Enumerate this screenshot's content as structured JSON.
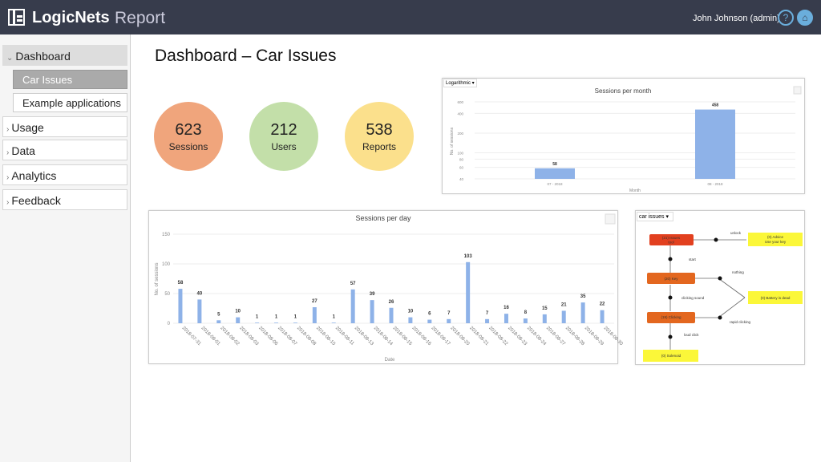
{
  "header": {
    "brand": "LogicNets",
    "product": "Report",
    "user": "John Johnson (admin)",
    "help_icon": "?",
    "home_icon": "⌂"
  },
  "sidebar": {
    "items": [
      {
        "label": "Dashboard",
        "expanded": true,
        "children": [
          {
            "label": "Car Issues",
            "active": true
          },
          {
            "label": "Example applications"
          }
        ]
      },
      {
        "label": "Usage"
      },
      {
        "label": "Data"
      },
      {
        "label": "Analytics"
      },
      {
        "label": "Feedback"
      }
    ]
  },
  "page": {
    "title": "Dashboard – Car Issues"
  },
  "kpis": [
    {
      "value": "623",
      "label": "Sessions",
      "color": "#f0a57c"
    },
    {
      "value": "212",
      "label": "Users",
      "color": "#c3dfa9"
    },
    {
      "value": "538",
      "label": "Reports",
      "color": "#fbe08c"
    }
  ],
  "colors": {
    "bar": "#8eb2e8",
    "issues": "#e2401f",
    "node": "#e3671f",
    "leaf": "#fbf739"
  },
  "chart_data": [
    {
      "type": "bar",
      "title": "Sessions per month",
      "scale_selector": "Logarithmic",
      "xlabel": "Month",
      "ylabel": "No. of sessions",
      "yscale": "log",
      "yticks": [
        40,
        60,
        80,
        100,
        200,
        400,
        600
      ],
      "ylim": [
        40,
        600
      ],
      "categories": [
        "07 - 2018",
        "08 - 2018"
      ],
      "values": [
        58,
        458
      ]
    },
    {
      "type": "bar",
      "title": "Sessions per day",
      "xlabel": "Date",
      "ylabel": "No. of sessions",
      "yticks": [
        0,
        50,
        100,
        150
      ],
      "ylim": [
        0,
        150
      ],
      "categories": [
        "2018-07-31",
        "2018-08-01",
        "2018-08-02",
        "2018-08-03",
        "2018-08-06",
        "2018-08-07",
        "2018-08-08",
        "2018-08-10",
        "2018-08-11",
        "2018-08-13",
        "2018-08-14",
        "2018-08-15",
        "2018-08-16",
        "2018-08-17",
        "2018-08-20",
        "2018-08-21",
        "2018-08-22",
        "2018-08-23",
        "2018-08-24",
        "2018-08-27",
        "2018-08-28",
        "2018-08-29",
        "2018-08-30"
      ],
      "values": [
        58,
        40,
        5,
        10,
        1,
        1,
        1,
        27,
        1,
        57,
        39,
        26,
        10,
        6,
        7,
        103,
        7,
        16,
        8,
        15,
        21,
        35,
        22
      ]
    }
  ],
  "diagram": {
    "selector": "car issues",
    "nodes": {
      "issues": [
        "(21) Issues",
        "tool"
      ],
      "key": "(20) Key",
      "clicking": "(19) Clicking",
      "solenoid": "(0) Solenoid",
      "battery": "(0) Battery is dead",
      "advice": [
        "(0) Advice",
        "Use your key"
      ]
    },
    "edges": {
      "unlock": "unlock",
      "start": "start",
      "nothing": "nothing",
      "clicking_sound": "clicking sound",
      "rapid_clicking": "rapid clicking",
      "loud_click": "loud click"
    }
  }
}
